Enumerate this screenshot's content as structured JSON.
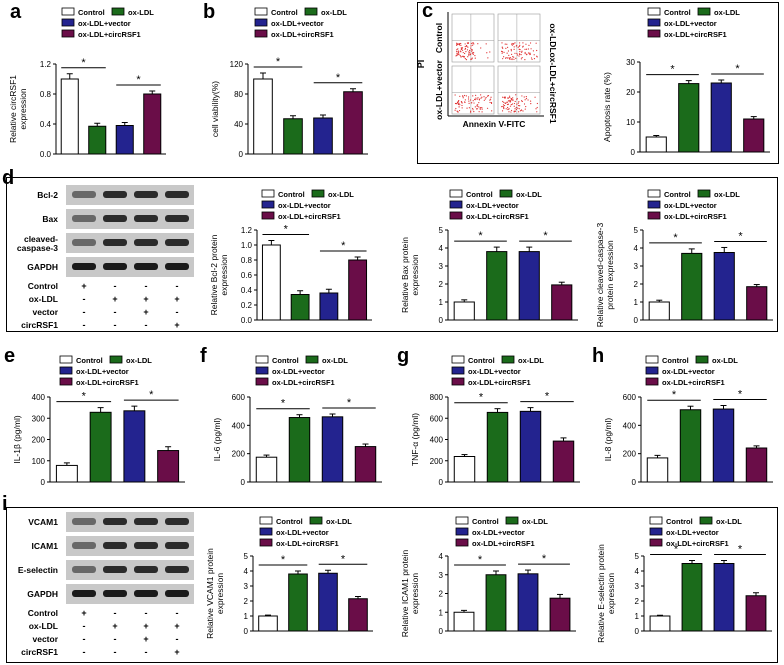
{
  "colors": {
    "control": "#ffffff",
    "oxldl": "#1b6b1b",
    "vector": "#23238f",
    "circ": "#6a0d48",
    "stroke": "#000000"
  },
  "legend": [
    "Control",
    "ox-LDL",
    "ox-LDL+vector",
    "ox-LDL+circRSF1"
  ],
  "panel_letters": [
    "a",
    "b",
    "c",
    "d",
    "e",
    "f",
    "g",
    "h",
    "i"
  ],
  "flow": {
    "ylabel": "PI",
    "xlabel": "Annexin V-FITC",
    "rows": [
      "Control",
      "ox-LDL+vector"
    ],
    "right": [
      "ox-LDL",
      "ox-LDL+circRSF1"
    ]
  },
  "blots": {
    "d": {
      "bands": [
        "Bcl-2",
        "Bax",
        "cleaved-\ncaspase-3",
        "GAPDH"
      ],
      "treat": [
        "Control",
        "ox-LDL",
        "vector",
        "circRSF1"
      ],
      "signs": [
        [
          "+",
          "-",
          "-",
          "-"
        ],
        [
          "-",
          "+",
          "+",
          "+"
        ],
        [
          "-",
          "-",
          "+",
          "-"
        ],
        [
          "-",
          "-",
          "-",
          "+"
        ]
      ]
    },
    "i": {
      "bands": [
        "VCAM1",
        "ICAM1",
        "E-selectin",
        "GAPDH"
      ],
      "treat": [
        "Control",
        "ox-LDL",
        "vector",
        "circRSF1"
      ],
      "signs": [
        [
          "+",
          "-",
          "-",
          "-"
        ],
        [
          "-",
          "+",
          "+",
          "+"
        ],
        [
          "-",
          "-",
          "+",
          "-"
        ],
        [
          "-",
          "-",
          "-",
          "+"
        ]
      ]
    }
  },
  "chart_data": [
    {
      "id": "a",
      "type": "bar",
      "categories": [
        "Control",
        "ox-LDL",
        "ox-LDL+vector",
        "ox-LDL+circRSF1"
      ],
      "values": [
        1.0,
        0.37,
        0.38,
        0.8
      ],
      "errors": [
        0.07,
        0.04,
        0.04,
        0.04
      ],
      "ylabel": "Relative circRSF1\nexpression",
      "ylim": [
        0,
        1.2
      ],
      "yticks": [
        "0.0",
        "0.4",
        "0.8",
        "1.2"
      ],
      "sig": [
        [
          0,
          1
        ],
        [
          2,
          3
        ]
      ]
    },
    {
      "id": "b",
      "type": "bar",
      "categories": [
        "Control",
        "ox-LDL",
        "ox-LDL+vector",
        "ox-LDL+circRSF1"
      ],
      "values": [
        100,
        47,
        48,
        83
      ],
      "errors": [
        8,
        4,
        4,
        4
      ],
      "ylabel": "cell viability(%)",
      "ylim": [
        0,
        120
      ],
      "yticks": [
        "0",
        "40",
        "80",
        "120"
      ],
      "sig": [
        [
          0,
          1
        ],
        [
          2,
          3
        ]
      ]
    },
    {
      "id": "c",
      "type": "bar",
      "categories": [
        "Control",
        "ox-LDL",
        "ox-LDL+vector",
        "ox-LDL+circRSF1"
      ],
      "values": [
        5,
        22.8,
        23,
        11
      ],
      "errors": [
        0.5,
        1,
        1,
        0.8
      ],
      "ylabel": "Apoptosis rate (%)",
      "ylim": [
        0,
        30
      ],
      "yticks": [
        "0",
        "10",
        "20",
        "30"
      ],
      "sig": [
        [
          0,
          1
        ],
        [
          2,
          3
        ]
      ]
    },
    {
      "id": "d1",
      "type": "bar",
      "categories": [
        "Control",
        "ox-LDL",
        "ox-LDL+vector",
        "ox-LDL+circRSF1"
      ],
      "values": [
        1.0,
        0.34,
        0.36,
        0.8
      ],
      "errors": [
        0.06,
        0.05,
        0.05,
        0.04
      ],
      "ylabel": "Relative Bcl-2 protein\nexpression",
      "ylim": [
        0,
        1.2
      ],
      "yticks": [
        "0.0",
        "0.2",
        "0.4",
        "0.6",
        "0.8",
        "1.0",
        "1.2"
      ],
      "sig": [
        [
          0,
          1
        ],
        [
          2,
          3
        ]
      ]
    },
    {
      "id": "d2",
      "type": "bar",
      "categories": [
        "Control",
        "ox-LDL",
        "ox-LDL+vector",
        "ox-LDL+circRSF1"
      ],
      "values": [
        1.0,
        3.8,
        3.8,
        1.95
      ],
      "errors": [
        0.12,
        0.25,
        0.25,
        0.15
      ],
      "ylabel": "Relative Bax protein\nexpression",
      "ylim": [
        0,
        5
      ],
      "yticks": [
        "0",
        "1",
        "2",
        "3",
        "4",
        "5"
      ],
      "sig": [
        [
          0,
          1
        ],
        [
          2,
          3
        ]
      ]
    },
    {
      "id": "d3",
      "type": "bar",
      "categories": [
        "Control",
        "ox-LDL",
        "ox-LDL+vector",
        "ox-LDL+circRSF1"
      ],
      "values": [
        1.0,
        3.7,
        3.75,
        1.85
      ],
      "errors": [
        0.1,
        0.25,
        0.28,
        0.12
      ],
      "ylabel": "Relative cleaved-caspase-3\nprotein expression",
      "ylim": [
        0,
        5
      ],
      "yticks": [
        "0",
        "1",
        "2",
        "3",
        "4",
        "5"
      ],
      "sig": [
        [
          0,
          1
        ],
        [
          2,
          3
        ]
      ]
    },
    {
      "id": "e",
      "type": "bar",
      "categories": [
        "Control",
        "ox-LDL",
        "ox-LDL+vector",
        "ox-LDL+circRSF1"
      ],
      "values": [
        78,
        328,
        335,
        148
      ],
      "errors": [
        12,
        22,
        22,
        18
      ],
      "ylabel": "IL-1β (pg/ml)",
      "ylim": [
        0,
        400
      ],
      "yticks": [
        "0",
        "100",
        "200",
        "300",
        "400"
      ],
      "sig": [
        [
          0,
          1
        ],
        [
          2,
          3
        ]
      ]
    },
    {
      "id": "f",
      "type": "bar",
      "categories": [
        "Control",
        "ox-LDL",
        "ox-LDL+vector",
        "ox-LDL+circRSF1"
      ],
      "values": [
        175,
        455,
        460,
        250
      ],
      "errors": [
        15,
        20,
        20,
        18
      ],
      "ylabel": "IL-6 (pg/ml)",
      "ylim": [
        0,
        600
      ],
      "yticks": [
        "0",
        "200",
        "400",
        "600"
      ],
      "sig": [
        [
          0,
          1
        ],
        [
          2,
          3
        ]
      ]
    },
    {
      "id": "g",
      "type": "bar",
      "categories": [
        "Control",
        "ox-LDL",
        "ox-LDL+vector",
        "ox-LDL+circRSF1"
      ],
      "values": [
        240,
        655,
        665,
        385
      ],
      "errors": [
        18,
        35,
        35,
        30
      ],
      "ylabel": "TNF-α (pg/ml)",
      "ylim": [
        0,
        800
      ],
      "yticks": [
        "0",
        "200",
        "400",
        "600",
        "800"
      ],
      "sig": [
        [
          0,
          1
        ],
        [
          2,
          3
        ]
      ]
    },
    {
      "id": "h",
      "type": "bar",
      "categories": [
        "Control",
        "ox-LDL",
        "ox-LDL+vector",
        "ox-LDL+circRSF1"
      ],
      "values": [
        170,
        510,
        515,
        240
      ],
      "errors": [
        18,
        25,
        25,
        15
      ],
      "ylabel": "IL-8 (pg/ml)",
      "ylim": [
        0,
        600
      ],
      "yticks": [
        "0",
        "200",
        "400",
        "600"
      ],
      "sig": [
        [
          0,
          1
        ],
        [
          2,
          3
        ]
      ]
    },
    {
      "id": "i1",
      "type": "bar",
      "categories": [
        "Control",
        "ox-LDL",
        "ox-LDL+vector",
        "ox-LDL+circRSF1"
      ],
      "values": [
        1.0,
        3.8,
        3.85,
        2.15
      ],
      "errors": [
        0.06,
        0.2,
        0.2,
        0.15
      ],
      "ylabel": "Relative VCAM1 protein\nexpression",
      "ylim": [
        0,
        5
      ],
      "yticks": [
        "0",
        "1",
        "2",
        "3",
        "4",
        "5"
      ],
      "sig": [
        [
          0,
          1
        ],
        [
          2,
          3
        ]
      ]
    },
    {
      "id": "i2",
      "type": "bar",
      "categories": [
        "Control",
        "ox-LDL",
        "ox-LDL+vector",
        "ox-LDL+circRSF1"
      ],
      "values": [
        1.0,
        3.0,
        3.05,
        1.75
      ],
      "errors": [
        0.1,
        0.2,
        0.2,
        0.2
      ],
      "ylabel": "Relative ICAM1 protein\nexpression",
      "ylim": [
        0,
        4
      ],
      "yticks": [
        "0",
        "1",
        "2",
        "3",
        "4"
      ],
      "sig": [
        [
          0,
          1
        ],
        [
          2,
          3
        ]
      ]
    },
    {
      "id": "i3",
      "type": "bar",
      "categories": [
        "Control",
        "ox-LDL",
        "ox-LDL+vector",
        "ox-LDL+circRSF1"
      ],
      "values": [
        1.0,
        4.5,
        4.5,
        2.35
      ],
      "errors": [
        0.05,
        0.2,
        0.2,
        0.2
      ],
      "ylabel": "Relative E-selectin protein\nexpression",
      "ylim": [
        0,
        5
      ],
      "yticks": [
        "0",
        "1",
        "2",
        "3",
        "4",
        "5"
      ],
      "sig": [
        [
          0,
          1
        ],
        [
          2,
          3
        ]
      ]
    }
  ]
}
